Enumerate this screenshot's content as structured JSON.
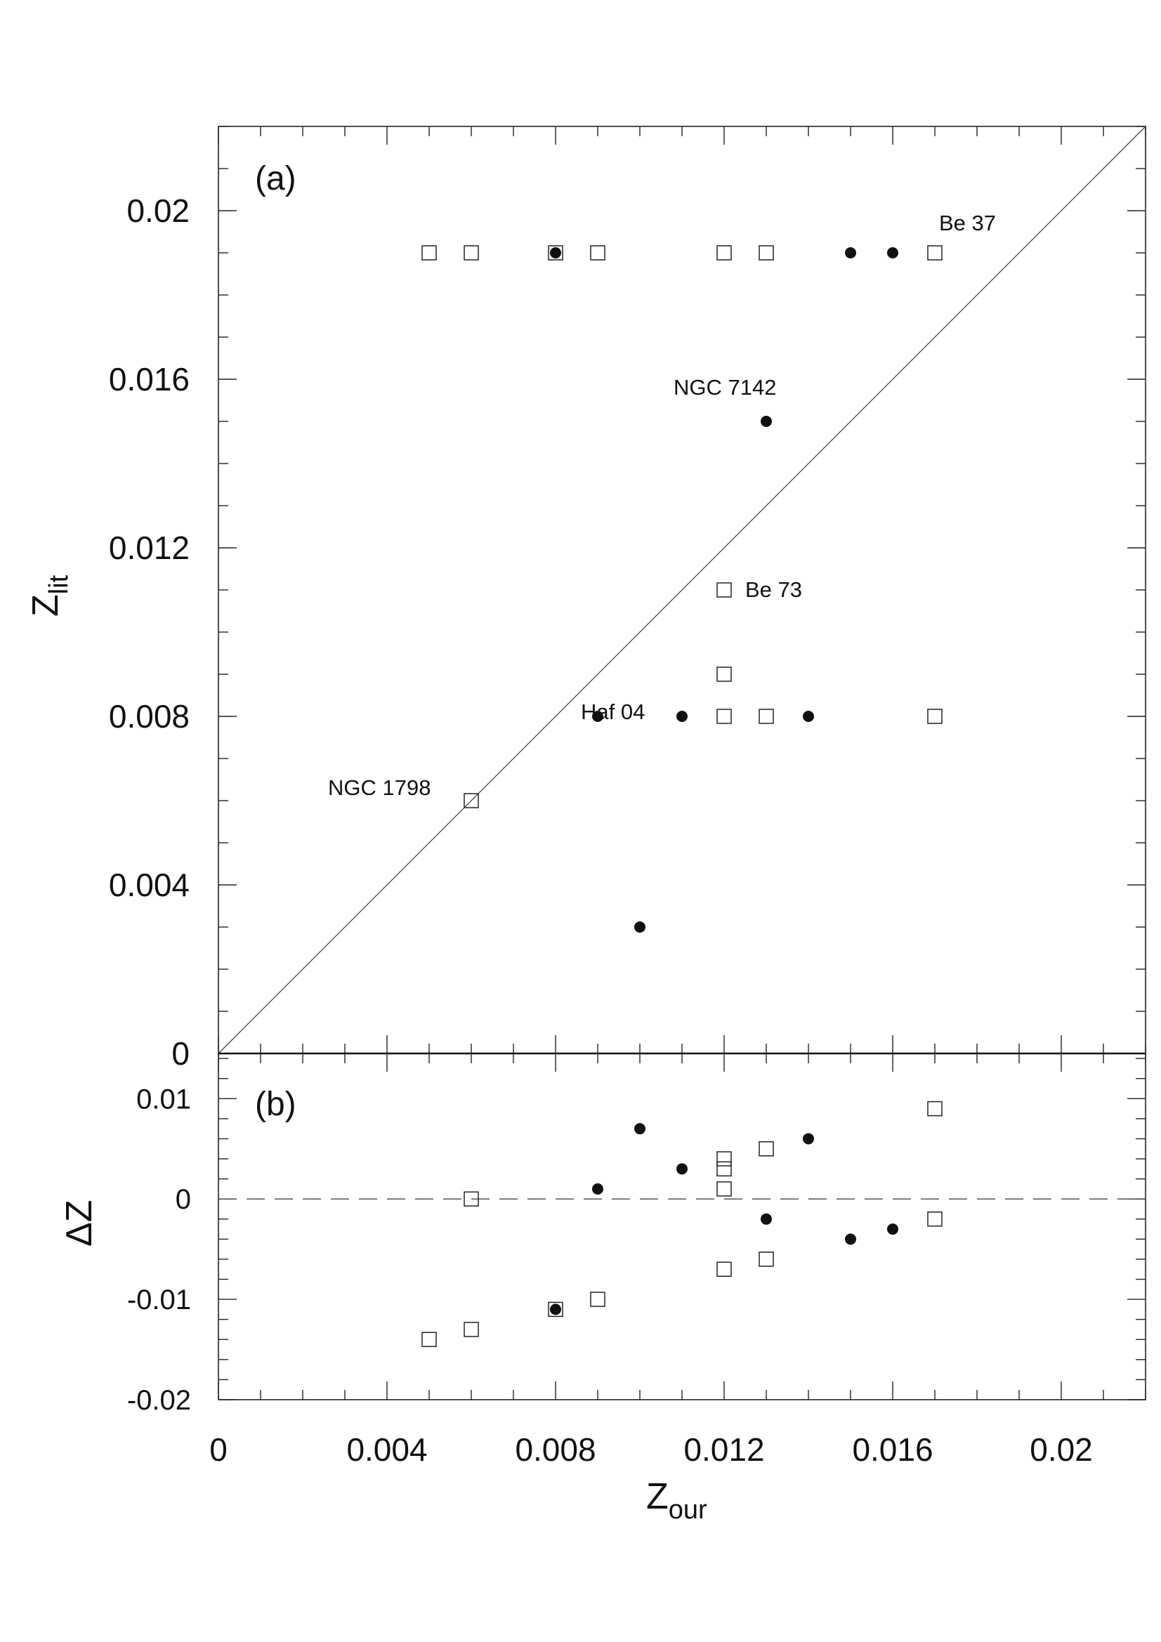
{
  "chart_data": [
    {
      "panel_label": "(a)",
      "type": "scatter",
      "xlabel": "Z",
      "xlabel_sub": "our",
      "ylabel": "Z",
      "ylabel_sub": "lit",
      "xlim": [
        0,
        0.022
      ],
      "ylim": [
        0,
        0.022
      ],
      "x_ticks": [
        "0",
        "0.004",
        "0.008",
        "0.012",
        "0.016",
        "0.02"
      ],
      "y_ticks": [
        "0",
        "0.004",
        "0.008",
        "0.012",
        "0.016",
        "0.02"
      ],
      "reference_line": "y = x",
      "series": [
        {
          "marker": "filled-circle",
          "points": [
            {
              "x": 0.008,
              "y": 0.019
            },
            {
              "x": 0.015,
              "y": 0.019
            },
            {
              "x": 0.016,
              "y": 0.019
            },
            {
              "x": 0.013,
              "y": 0.015
            },
            {
              "x": 0.009,
              "y": 0.008
            },
            {
              "x": 0.011,
              "y": 0.008
            },
            {
              "x": 0.014,
              "y": 0.008
            },
            {
              "x": 0.01,
              "y": 0.003
            }
          ]
        },
        {
          "marker": "open-square",
          "points": [
            {
              "x": 0.005,
              "y": 0.019
            },
            {
              "x": 0.006,
              "y": 0.019
            },
            {
              "x": 0.008,
              "y": 0.019
            },
            {
              "x": 0.009,
              "y": 0.019
            },
            {
              "x": 0.012,
              "y": 0.019
            },
            {
              "x": 0.013,
              "y": 0.019
            },
            {
              "x": 0.017,
              "y": 0.019
            },
            {
              "x": 0.012,
              "y": 0.011
            },
            {
              "x": 0.012,
              "y": 0.009
            },
            {
              "x": 0.012,
              "y": 0.008
            },
            {
              "x": 0.013,
              "y": 0.008
            },
            {
              "x": 0.017,
              "y": 0.008
            },
            {
              "x": 0.006,
              "y": 0.006
            }
          ]
        }
      ],
      "annotations": [
        {
          "text": "Be 37",
          "x": 0.0171,
          "y": 0.0197
        },
        {
          "text": "NGC 7142",
          "x": 0.0108,
          "y": 0.0158
        },
        {
          "text": "Be 73",
          "x": 0.0125,
          "y": 0.011
        },
        {
          "text": "Haf 04",
          "x": 0.0086,
          "y": 0.0081
        },
        {
          "text": "NGC 1798",
          "x": 0.0026,
          "y": 0.0063
        }
      ]
    },
    {
      "panel_label": "(b)",
      "type": "scatter",
      "xlabel": "Z",
      "xlabel_sub": "our",
      "ylabel": "ΔZ",
      "xlim": [
        0,
        0.022
      ],
      "ylim": [
        -0.02,
        0.0145
      ],
      "x_ticks": [
        "0",
        "0.004",
        "0.008",
        "0.012",
        "0.016",
        "0.02"
      ],
      "y_ticks": [
        "-0.02",
        "-0.01",
        "0",
        "0.01"
      ],
      "reference_line": "y = 0 (dashed)",
      "series": [
        {
          "marker": "filled-circle",
          "points": [
            {
              "x": 0.008,
              "y": -0.011
            },
            {
              "x": 0.009,
              "y": 0.001
            },
            {
              "x": 0.01,
              "y": 0.007
            },
            {
              "x": 0.011,
              "y": 0.003
            },
            {
              "x": 0.013,
              "y": -0.002
            },
            {
              "x": 0.014,
              "y": 0.006
            },
            {
              "x": 0.015,
              "y": -0.004
            },
            {
              "x": 0.016,
              "y": -0.003
            }
          ]
        },
        {
          "marker": "open-square",
          "points": [
            {
              "x": 0.005,
              "y": -0.014
            },
            {
              "x": 0.006,
              "y": -0.013
            },
            {
              "x": 0.006,
              "y": 0.0
            },
            {
              "x": 0.008,
              "y": -0.011
            },
            {
              "x": 0.009,
              "y": -0.01
            },
            {
              "x": 0.012,
              "y": -0.007
            },
            {
              "x": 0.012,
              "y": 0.001
            },
            {
              "x": 0.012,
              "y": 0.003
            },
            {
              "x": 0.012,
              "y": 0.004
            },
            {
              "x": 0.013,
              "y": -0.006
            },
            {
              "x": 0.013,
              "y": 0.005
            },
            {
              "x": 0.017,
              "y": -0.002
            },
            {
              "x": 0.017,
              "y": 0.009
            }
          ]
        }
      ]
    }
  ]
}
